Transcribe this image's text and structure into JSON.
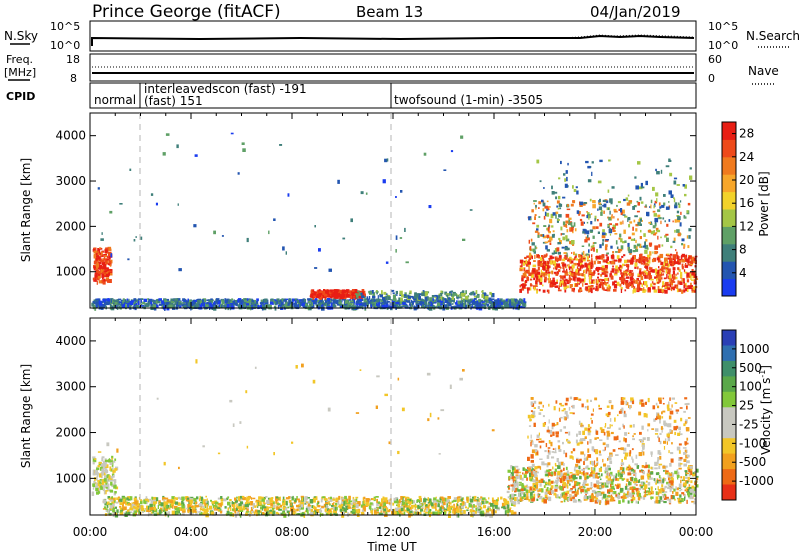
{
  "header": {
    "station": "Prince George (fitACF)",
    "beam": "Beam 13",
    "date": "04/Jan/2019"
  },
  "nsky_panel": {
    "left_label": "N.Sky",
    "right_label": "N.Search",
    "ticks_left": [
      "10^5",
      "10^0"
    ],
    "ticks_right": [
      "10^5",
      "10^0"
    ]
  },
  "freq_panel": {
    "left_label_1": "Freq.",
    "left_label_2": "[MHz]",
    "right_label": "Nave",
    "ticks_left": [
      "18",
      "8"
    ],
    "ticks_right": [
      "60",
      "0"
    ]
  },
  "cpid_panel": {
    "label": "CPID",
    "segments": [
      {
        "text_1": "normal",
        "text_2": ""
      },
      {
        "text_1": "interleavedscon (fast) -191",
        "text_2": "(fast) 151"
      },
      {
        "text_1": "twofsound (1-min) -3505",
        "text_2": ""
      }
    ]
  },
  "time_axis": {
    "label": "Time UT",
    "ticks": [
      "00:00",
      "04:00",
      "08:00",
      "12:00",
      "16:00",
      "20:00",
      "00:00"
    ]
  },
  "power_panel": {
    "ylabel": "Slant Range [km]",
    "yticks": [
      "1000",
      "2000",
      "3000",
      "4000"
    ],
    "cbar_label": "Power [dB]",
    "cbar_ticks": [
      "4",
      "8",
      "12",
      "16",
      "20",
      "24",
      "28"
    ],
    "cbar_colors": [
      "#1a3cf0",
      "#2355b0",
      "#3f7f7a",
      "#5fa066",
      "#a4c646",
      "#f2d22a",
      "#f7a62a",
      "#f07a1e",
      "#ee4a1a",
      "#e81e14"
    ]
  },
  "velocity_panel": {
    "ylabel": "Slant Range [km]",
    "yticks": [
      "1000",
      "2000",
      "3000",
      "4000"
    ],
    "cbar_label": "Velocity [m s",
    "cbar_label_sup": "-1",
    "cbar_label_end": "]",
    "cbar_ticks": [
      "1000",
      "500",
      "100",
      "25",
      "-25",
      "-100",
      "-500",
      "-1000"
    ],
    "cbar_colors": [
      "#2a3fb5",
      "#2f6fb0",
      "#3f8f6a",
      "#5aa84a",
      "#82c83a",
      "#c8c8c0",
      "#c8c8c0",
      "#f2c628",
      "#f2a01e",
      "#ee6a16",
      "#e83018"
    ]
  },
  "chart_data": [
    {
      "type": "heatmap",
      "name": "Power",
      "x_range_hours": [
        0,
        24
      ],
      "y_range_km": [
        200,
        4500
      ],
      "colorbar_range_db": [
        0,
        30
      ],
      "regions": [
        {
          "t0": 0.1,
          "t1": 0.8,
          "r0": 800,
          "r1": 1500,
          "level": "28"
        },
        {
          "t0": 0.0,
          "t1": 17.0,
          "r0": 200,
          "r1": 450,
          "level": "4-12"
        },
        {
          "t0": 8.7,
          "t1": 10.8,
          "r0": 450,
          "r1": 620,
          "level": "28"
        },
        {
          "t0": 17.0,
          "t1": 24.0,
          "r0": 600,
          "r1": 1400,
          "level": "24-28"
        },
        {
          "t0": 17.5,
          "t1": 23.5,
          "r0": 1400,
          "r1": 2600,
          "level": "8-24"
        }
      ]
    },
    {
      "type": "heatmap",
      "name": "Velocity",
      "x_range_hours": [
        0,
        24
      ],
      "y_range_km": [
        200,
        4500
      ],
      "colorbar_range_ms": [
        -1000,
        1000
      ],
      "regions": [
        {
          "t0": 0.0,
          "t1": 1.0,
          "r0": 700,
          "r1": 1500,
          "level": "-25 to 25"
        },
        {
          "t0": 0.5,
          "t1": 16.5,
          "r0": 200,
          "r1": 600,
          "level": "-100 to 100"
        },
        {
          "t0": 16.5,
          "t1": 24.0,
          "r0": 500,
          "r1": 1300,
          "level": "-500 to 100"
        },
        {
          "t0": 17.5,
          "t1": 23.5,
          "r0": 1300,
          "r1": 2800,
          "level": "-100 to -500"
        }
      ]
    }
  ]
}
